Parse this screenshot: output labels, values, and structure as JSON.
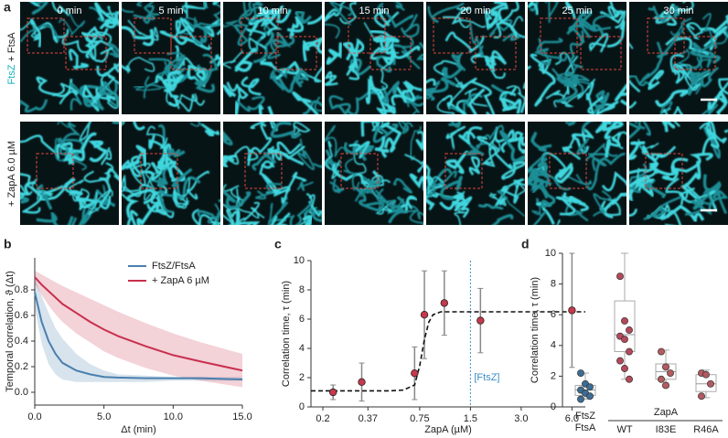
{
  "figure": {
    "panel_labels": [
      "a",
      "b",
      "c",
      "d"
    ],
    "time_labels": [
      "0 min",
      "5 min",
      "10 min",
      "15 min",
      "20 min",
      "25 min",
      "30 min"
    ],
    "row_labels": [
      [
        "FtsZ",
        "+ FtsA"
      ],
      [
        "+ ZapA 6.0 µM"
      ]
    ]
  },
  "chart_data": [
    {
      "type": "line",
      "ylabel": "Temporal correlation, ϑ (Δt)",
      "xlabel": "Δt (min)",
      "x": [
        0,
        0.5,
        1,
        1.5,
        2,
        3,
        4,
        5,
        6,
        8,
        10,
        12,
        15
      ],
      "series": [
        {
          "name": "FtsZ/FtsA",
          "color": "#4a7fae",
          "values": [
            0.78,
            0.55,
            0.4,
            0.3,
            0.23,
            0.17,
            0.14,
            0.12,
            0.115,
            0.11,
            0.11,
            0.11,
            0.1
          ],
          "lower": [
            0.66,
            0.38,
            0.22,
            0.14,
            0.1,
            0.08,
            0.08,
            0.08,
            0.08,
            0.08,
            0.09,
            0.09,
            0.09
          ],
          "upper": [
            0.9,
            0.75,
            0.62,
            0.5,
            0.42,
            0.3,
            0.22,
            0.17,
            0.14,
            0.13,
            0.12,
            0.12,
            0.12
          ]
        },
        {
          "name": "+ ZapA 6 µM",
          "color": "#c8304e",
          "values": [
            0.9,
            0.84,
            0.79,
            0.74,
            0.69,
            0.62,
            0.55,
            0.49,
            0.44,
            0.36,
            0.29,
            0.24,
            0.17
          ],
          "lower": [
            0.85,
            0.76,
            0.68,
            0.61,
            0.55,
            0.46,
            0.39,
            0.32,
            0.27,
            0.19,
            0.13,
            0.09,
            0.04
          ],
          "upper": [
            0.95,
            0.92,
            0.89,
            0.86,
            0.83,
            0.78,
            0.73,
            0.68,
            0.63,
            0.54,
            0.46,
            0.39,
            0.3
          ]
        }
      ],
      "xlim": [
        0,
        15
      ],
      "xticks": [
        {
          "value": 0,
          "label": "0.0"
        },
        {
          "value": 5,
          "label": "5.0"
        },
        {
          "value": 10,
          "label": "10.0"
        },
        {
          "value": 15,
          "label": "15.0"
        }
      ],
      "ylim": [
        -0.1,
        1.05
      ],
      "yticks": [
        {
          "value": 0,
          "label": "0.0"
        },
        0.2,
        0.4,
        0.6,
        0.8
      ]
    },
    {
      "type": "scatter",
      "ylabel": "Correlation time, τ (min)",
      "xlabel": "ZapA (µM)",
      "xscale": "log",
      "x": [
        0.23,
        0.34,
        0.7,
        0.8,
        1.05,
        1.72,
        6.0
      ],
      "values": [
        1.0,
        1.7,
        2.3,
        6.3,
        7.1,
        5.9,
        6.6
      ],
      "errors": [
        0.5,
        1.3,
        1.8,
        3.0,
        2.2,
        2.2,
        3.9
      ],
      "color": "#c8374c",
      "fit": {
        "x": [
          0.17,
          0.3,
          0.5,
          0.6,
          0.7,
          0.75,
          0.8,
          0.85,
          0.9,
          1.0,
          1.5,
          3,
          6,
          7.2
        ],
        "values": [
          1.1,
          1.1,
          1.1,
          1.15,
          1.5,
          2.8,
          4.6,
          5.8,
          6.3,
          6.5,
          6.5,
          6.5,
          6.5,
          6.5
        ]
      },
      "reference_line": {
        "x": 1.5,
        "label": "[FtsZ]",
        "color": "#3a8fc4"
      },
      "xlim": [
        0.17,
        7.2
      ],
      "xticks": [
        0.2,
        0.37,
        0.75,
        1.5,
        {
          "value": 3,
          "label": "3.0"
        },
        {
          "value": 6,
          "label": "6.0"
        }
      ],
      "ylim": [
        0,
        10
      ],
      "yticks": [
        0,
        2,
        4,
        6,
        8,
        10
      ]
    },
    {
      "type": "box",
      "ylabel": "Correlation time, τ (min)",
      "categories": [
        "FtsZ\nFtsA",
        "WT",
        "I83E",
        "R46A"
      ],
      "group_label": "ZapA",
      "colors": [
        "#3b6d95",
        "#b5485a",
        "#b55a5e",
        "#b25a62"
      ],
      "boxes": [
        {
          "min": 0.5,
          "q1": 0.75,
          "median": 1.1,
          "q3": 1.4,
          "max": 2.2,
          "points": [
            2.2,
            1.5,
            1.3,
            1.1,
            0.9,
            0.7,
            0.5
          ]
        },
        {
          "min": 1.8,
          "q1": 3.6,
          "median": 4.7,
          "q3": 6.9,
          "max": 10,
          "points": [
            8.5,
            5.6,
            5.0,
            4.6,
            4.4,
            3.6,
            3.0,
            2.5,
            1.8
          ]
        },
        {
          "min": 1.3,
          "q1": 1.8,
          "median": 2.3,
          "q3": 2.8,
          "max": 3.7,
          "points": [
            3.6,
            2.6,
            2.2,
            1.8,
            1.4
          ]
        },
        {
          "min": 0.6,
          "q1": 1.0,
          "median": 1.5,
          "q3": 2.1,
          "max": 2.4,
          "points": [
            2.2,
            2.1,
            1.5,
            0.7
          ]
        }
      ],
      "ylim": [
        0,
        10
      ],
      "yticks": [
        0,
        2,
        4,
        6,
        8,
        10
      ]
    }
  ]
}
